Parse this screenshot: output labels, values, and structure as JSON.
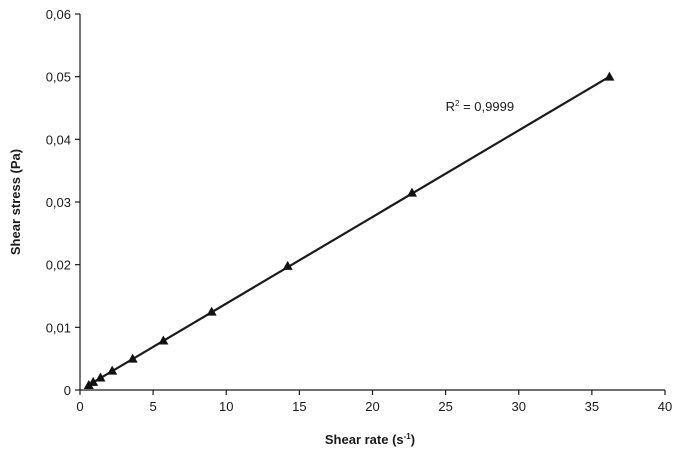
{
  "chart_data": {
    "type": "scatter",
    "xlabel": {
      "text": "Shear rate (s",
      "sup": "-1",
      "tail": ")"
    },
    "ylabel": "Shear stress (Pa)",
    "xlim": [
      0,
      40
    ],
    "ylim": [
      0,
      0.06
    ],
    "x_ticks": [
      0,
      5,
      10,
      15,
      20,
      25,
      30,
      35,
      40
    ],
    "y_ticks": [
      0,
      0.01,
      0.02,
      0.03,
      0.04,
      0.05,
      0.06
    ],
    "x_tick_labels": [
      "0",
      "5",
      "10",
      "15",
      "20",
      "25",
      "30",
      "35",
      "40"
    ],
    "y_tick_labels": [
      "0",
      "0,01",
      "0,02",
      "0,03",
      "0,04",
      "0,05",
      "0,06"
    ],
    "grid": false,
    "series": [
      {
        "marker": "triangle",
        "x": [
          0.6,
          0.9,
          1.4,
          2.2,
          3.6,
          5.7,
          9.0,
          14.2,
          22.7,
          36.2
        ],
        "y": [
          0.0008,
          0.0013,
          0.002,
          0.0031,
          0.005,
          0.0079,
          0.0125,
          0.0198,
          0.0315,
          0.05
        ]
      }
    ],
    "trendline": {
      "type": "linear",
      "from": [
        0.6,
        0.0008
      ],
      "to": [
        36.2,
        0.05
      ]
    },
    "annotation": {
      "prefix": "R",
      "sup": "2",
      "suffix": " = 0,9999",
      "at": [
        25,
        0.0445
      ]
    }
  }
}
